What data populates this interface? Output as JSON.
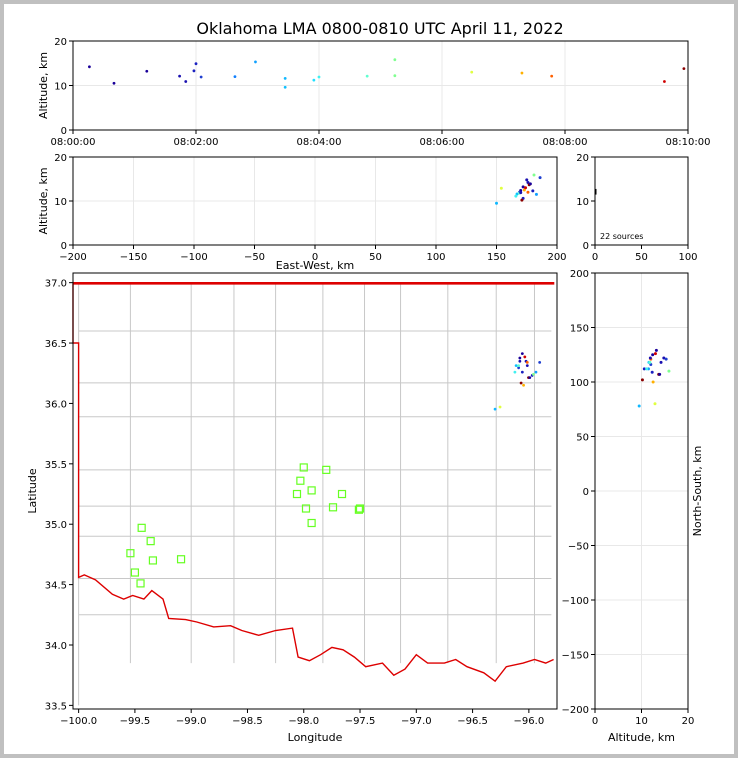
{
  "title": "Oklahoma LMA 0800-0810 UTC April 11, 2022",
  "colors": {
    "state_border": "#dd0000",
    "county_lines": "#c8c8c8",
    "station_marker": "#66ff22",
    "grid": "#e8e8e8"
  },
  "chart_data": [
    {
      "name": "time-altitude",
      "type": "scatter",
      "ylabel": "Altitude, km",
      "xlim": [
        "08:00:00",
        "08:10:00"
      ],
      "ylim": [
        0,
        20
      ],
      "xticks": [
        "08:00:00",
        "08:02:00",
        "08:04:00",
        "08:06:00",
        "08:08:00",
        "08:10:00"
      ],
      "yticks": [
        "0",
        "10",
        "20"
      ],
      "grid": true,
      "points": [
        {
          "t": "08:00:16",
          "alt": 14.2,
          "color": "#1a0099"
        },
        {
          "t": "08:00:40",
          "alt": 10.5,
          "color": "#1a0099"
        },
        {
          "t": "08:01:12",
          "alt": 13.2,
          "color": "#1a0099"
        },
        {
          "t": "08:01:44",
          "alt": 12.1,
          "color": "#1a10b0"
        },
        {
          "t": "08:01:50",
          "alt": 10.9,
          "color": "#1a10b0"
        },
        {
          "t": "08:01:58",
          "alt": 13.3,
          "color": "#1a20c0"
        },
        {
          "t": "08:02:00",
          "alt": 14.9,
          "color": "#1a20c0"
        },
        {
          "t": "08:02:05",
          "alt": 11.9,
          "color": "#2040d0"
        },
        {
          "t": "08:02:38",
          "alt": 12.0,
          "color": "#1080ff"
        },
        {
          "t": "08:02:58",
          "alt": 15.3,
          "color": "#10a0ff"
        },
        {
          "t": "08:03:27",
          "alt": 11.6,
          "color": "#10b8ff"
        },
        {
          "t": "08:03:27",
          "alt": 9.6,
          "color": "#10c0ff"
        },
        {
          "t": "08:03:55",
          "alt": 11.2,
          "color": "#20e0ff"
        },
        {
          "t": "08:04:00",
          "alt": 11.9,
          "color": "#40f0f0"
        },
        {
          "t": "08:04:47",
          "alt": 12.1,
          "color": "#60ffd0"
        },
        {
          "t": "08:05:14",
          "alt": 12.2,
          "color": "#80ff90"
        },
        {
          "t": "08:05:14",
          "alt": 15.8,
          "color": "#80ff90"
        },
        {
          "t": "08:06:29",
          "alt": 13.0,
          "color": "#e0ff40"
        },
        {
          "t": "08:07:18",
          "alt": 12.8,
          "color": "#ffb000"
        },
        {
          "t": "08:07:47",
          "alt": 12.1,
          "color": "#ff6000"
        },
        {
          "t": "08:09:37",
          "alt": 10.9,
          "color": "#d00000"
        },
        {
          "t": "08:09:56",
          "alt": 13.8,
          "color": "#8a0000"
        }
      ]
    },
    {
      "name": "east-west-altitude",
      "type": "scatter",
      "xlabel": "East-West, km",
      "ylabel": "Altitude, km",
      "xlim": [
        -200,
        200
      ],
      "ylim": [
        0,
        20
      ],
      "xticks": [
        "−200",
        "−150",
        "−100",
        "−50",
        "0",
        "50",
        "100",
        "150",
        "200"
      ],
      "yticks": [
        "0",
        "10",
        "20"
      ],
      "grid": true
    },
    {
      "name": "histogram",
      "type": "bar",
      "xlim": [
        0,
        100
      ],
      "ylim": [
        0,
        20
      ],
      "xticks": [
        "0",
        "50",
        "100"
      ],
      "yticks": [
        "0",
        "10",
        "20"
      ],
      "annotation": "22 sources",
      "bars": [
        {
          "count": 0,
          "alt": 11.8
        },
        {
          "count": 1,
          "alt": 12.4
        }
      ]
    },
    {
      "name": "plan-view",
      "type": "scatter",
      "xlabel": "Longitude",
      "ylabel": "Latitude",
      "xlim": [
        -100.05,
        -95.75
      ],
      "ylim": [
        33.47,
        37.08
      ],
      "xticks": [
        "−100.0",
        "−99.5",
        "−99.0",
        "−98.5",
        "−98.0",
        "−97.5",
        "−97.0",
        "−96.5",
        "−96.0"
      ],
      "yticks": [
        "33.5",
        "34.0",
        "34.5",
        "35.0",
        "35.5",
        "36.0",
        "36.5",
        "37.0"
      ],
      "stations": [
        [
          -99.44,
          34.97
        ],
        [
          -99.36,
          34.86
        ],
        [
          -99.54,
          34.76
        ],
        [
          -99.34,
          34.7
        ],
        [
          -99.09,
          34.71
        ],
        [
          -99.5,
          34.6
        ],
        [
          -99.45,
          34.51
        ],
        [
          -98.0,
          35.47
        ],
        [
          -97.8,
          35.45
        ],
        [
          -98.03,
          35.36
        ],
        [
          -98.06,
          35.25
        ],
        [
          -97.93,
          35.28
        ],
        [
          -97.66,
          35.25
        ],
        [
          -97.98,
          35.13
        ],
        [
          -97.74,
          35.14
        ],
        [
          -97.5,
          35.13
        ],
        [
          -97.51,
          35.12
        ],
        [
          -97.93,
          35.01
        ]
      ]
    },
    {
      "name": "altitude-north-south",
      "type": "scatter",
      "xlabel": "Altitude, km",
      "ylabel": "North-South, km",
      "xlim": [
        0,
        20
      ],
      "ylim": [
        -200,
        200
      ],
      "xticks": [
        "0",
        "10",
        "20"
      ],
      "yticks": [
        "−200",
        "−150",
        "−100",
        "−50",
        "0",
        "50",
        "100",
        "150",
        "200"
      ],
      "grid": true
    }
  ],
  "sources": [
    {
      "ew": 172,
      "ns": 129,
      "alt": 13.2,
      "color": "#1a0099"
    },
    {
      "ew": 170,
      "ns": 125,
      "alt": 12.4,
      "color": "#1a0099"
    },
    {
      "ew": 175,
      "ns": 122,
      "alt": 14.8,
      "color": "#1a10b0"
    },
    {
      "ew": 176,
      "ns": 118,
      "alt": 14.2,
      "color": "#1a10b0"
    },
    {
      "ew": 169,
      "ns": 116,
      "alt": 12.0,
      "color": "#2040d0"
    },
    {
      "ew": 172,
      "ns": 112,
      "alt": 10.6,
      "color": "#1a20c0"
    },
    {
      "ew": 180,
      "ns": 109,
      "alt": 12.3,
      "color": "#1a20c0"
    },
    {
      "ew": 186,
      "ns": 121,
      "alt": 15.3,
      "color": "#2040d0"
    },
    {
      "ew": 150,
      "ns": 78,
      "alt": 9.5,
      "color": "#10b8ff"
    },
    {
      "ew": 167,
      "ns": 118,
      "alt": 11.6,
      "color": "#10c0ff"
    },
    {
      "ew": 183,
      "ns": 112,
      "alt": 11.5,
      "color": "#10a0ff"
    },
    {
      "ew": 166,
      "ns": 112,
      "alt": 11.1,
      "color": "#40f0f0"
    },
    {
      "ew": 169,
      "ns": 118,
      "alt": 11.8,
      "color": "#60ffd0"
    },
    {
      "ew": 181,
      "ns": 110,
      "alt": 15.9,
      "color": "#80ff90"
    },
    {
      "ew": 154,
      "ns": 80,
      "alt": 12.9,
      "color": "#e0ff40"
    },
    {
      "ew": 173,
      "ns": 100,
      "alt": 12.5,
      "color": "#ffb000"
    },
    {
      "ew": 176,
      "ns": 121,
      "alt": 12.0,
      "color": "#ff6000"
    },
    {
      "ew": 174,
      "ns": 126,
      "alt": 13.0,
      "color": "#d00000"
    },
    {
      "ew": 177,
      "ns": 107,
      "alt": 13.7,
      "color": "#8a0000"
    },
    {
      "ew": 171,
      "ns": 102,
      "alt": 10.2,
      "color": "#8a0000"
    },
    {
      "ew": 178,
      "ns": 107,
      "alt": 13.9,
      "color": "#1a0099"
    },
    {
      "ew": 170,
      "ns": 122,
      "alt": 11.9,
      "color": "#1a10b0"
    }
  ]
}
